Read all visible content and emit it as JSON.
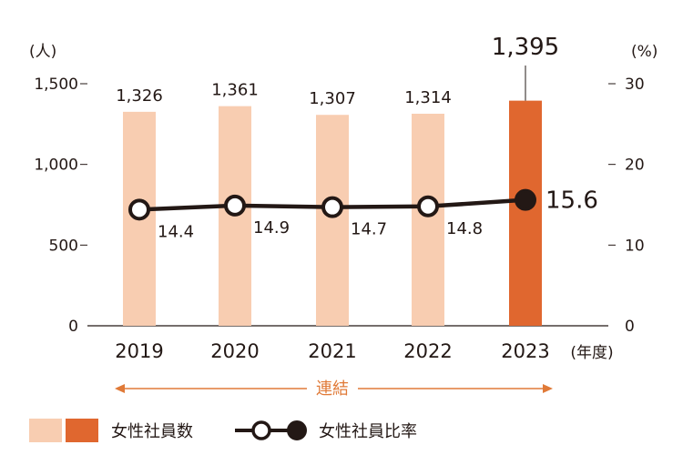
{
  "chart_data": {
    "type": "bar+line",
    "categories": [
      "2019",
      "2020",
      "2021",
      "2022",
      "2023"
    ],
    "x_unit": "(年度)",
    "series": [
      {
        "name": "女性社員数",
        "type": "bar",
        "axis": "left",
        "values": [
          1326,
          1361,
          1307,
          1314,
          1395
        ],
        "labels": [
          "1,326",
          "1,361",
          "1,307",
          "1,314",
          "1,395"
        ],
        "colors": [
          "#f8cdb1",
          "#f8cdb1",
          "#f8cdb1",
          "#f8cdb1",
          "#e0672f"
        ]
      },
      {
        "name": "女性社員比率",
        "type": "line",
        "axis": "right",
        "values": [
          14.4,
          14.9,
          14.7,
          14.8,
          15.6
        ],
        "labels": [
          "14.4",
          "14.9",
          "14.7",
          "14.8",
          "15.6"
        ],
        "marker_fill": [
          "#ffffff",
          "#ffffff",
          "#ffffff",
          "#ffffff",
          "#231815"
        ]
      }
    ],
    "y_left": {
      "unit": "(人)",
      "ylim": [
        0,
        1500
      ],
      "ticks": [
        "0",
        "500",
        "1,000",
        "1,500"
      ],
      "tick_values": [
        0,
        500,
        1000,
        1500
      ]
    },
    "y_right": {
      "unit": "(%)",
      "ylim": [
        0,
        30
      ],
      "ticks": [
        "0",
        "10",
        "20",
        "30"
      ],
      "tick_values": [
        0,
        10,
        20,
        30
      ]
    },
    "annotation": {
      "text": "連結",
      "span": [
        "2019",
        "2023"
      ],
      "color": "#e07a38"
    },
    "legend": {
      "placement": "bottom-left"
    },
    "grid": false
  },
  "colors": {
    "line": "#231815",
    "bar_light": "#f8cdb1",
    "bar_dark": "#e0672f",
    "arrow": "#e07a38"
  }
}
